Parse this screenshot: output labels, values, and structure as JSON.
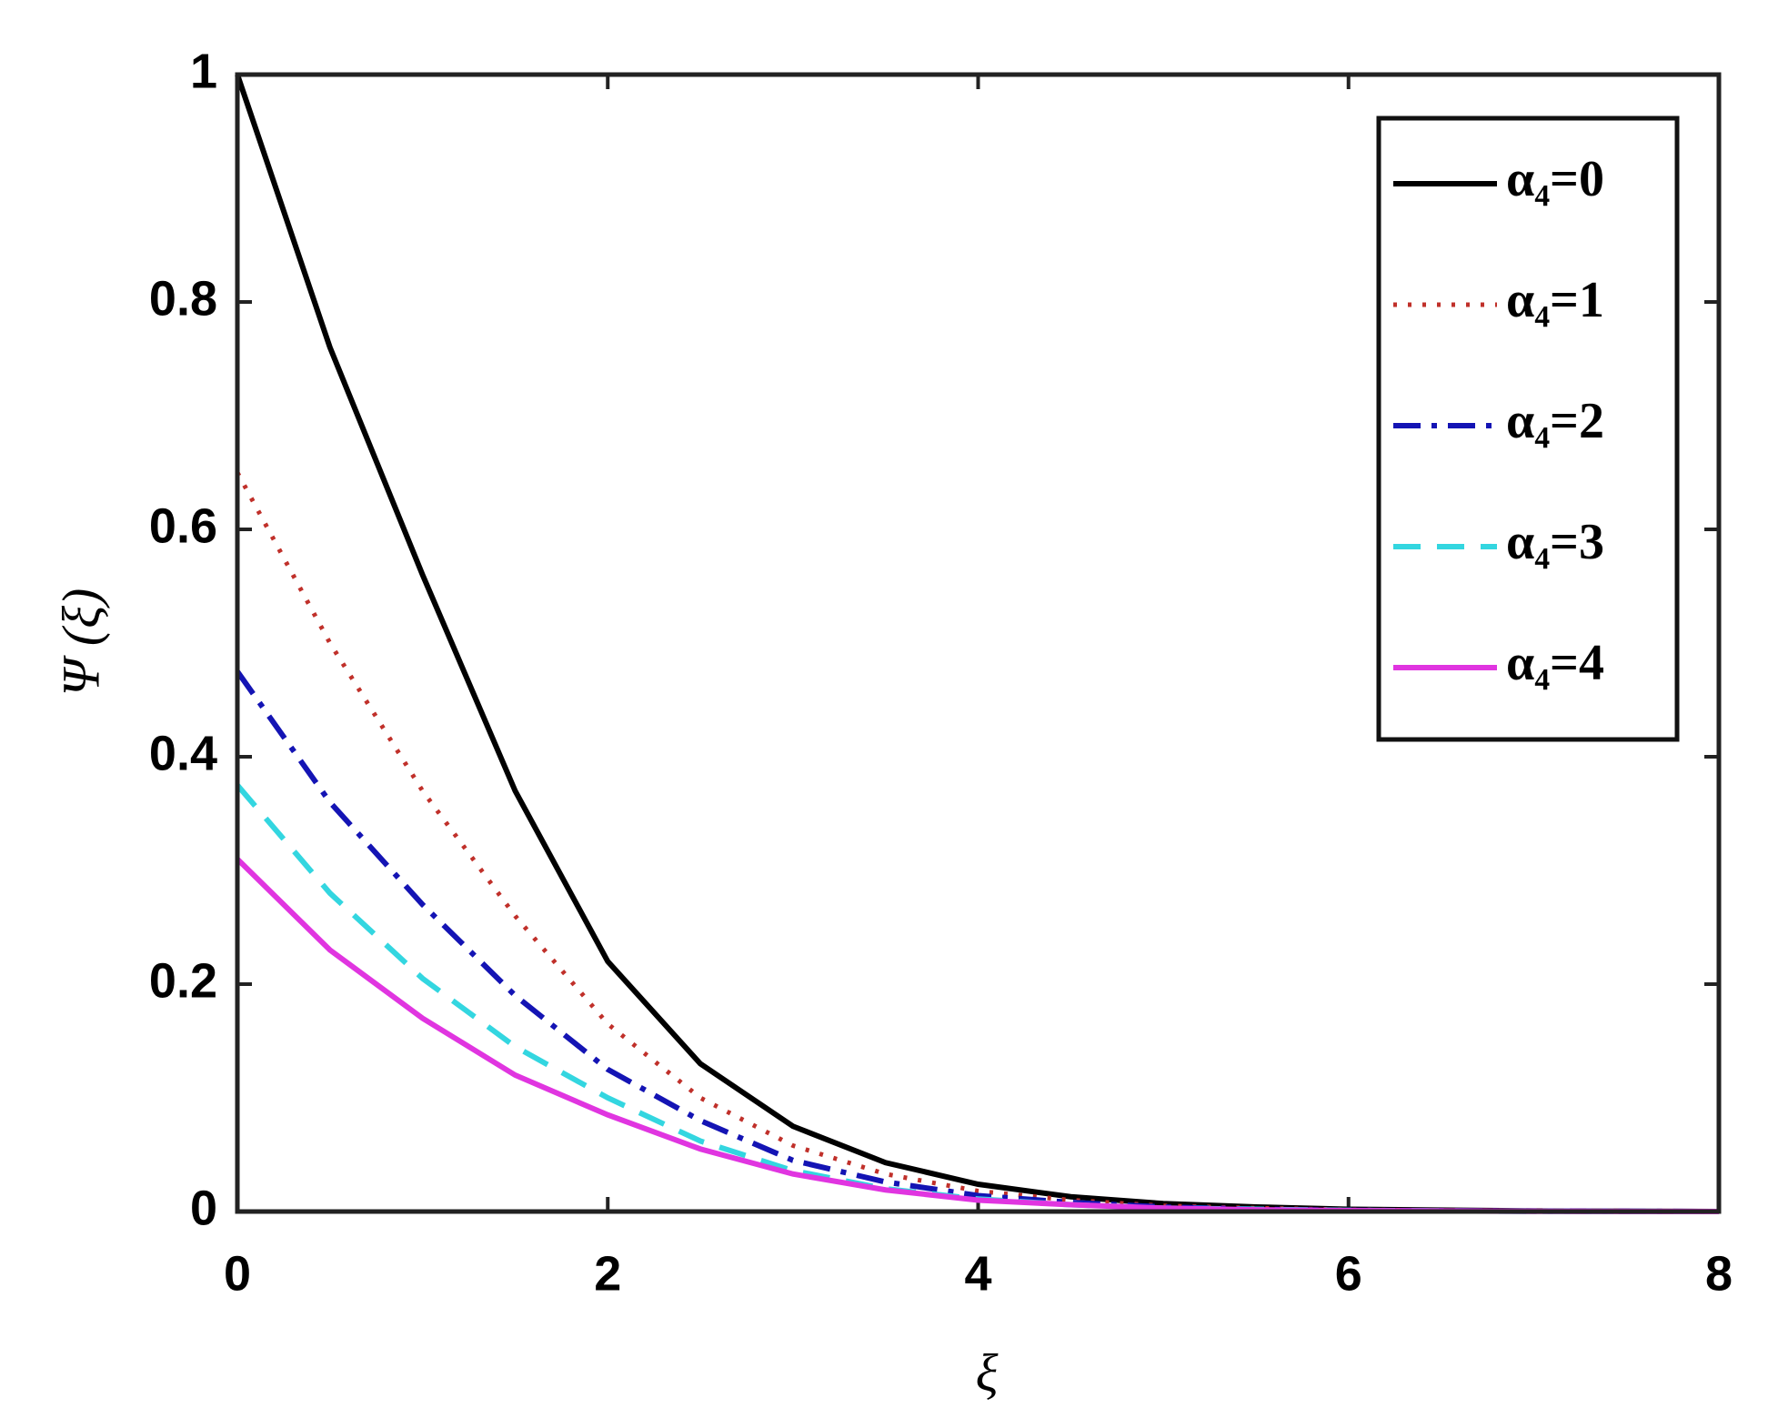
{
  "chart_data": {
    "type": "line",
    "xlabel": "ξ",
    "ylabel": "Ψ (ξ)",
    "x": [
      0,
      0.5,
      1,
      1.5,
      2,
      2.5,
      3,
      3.5,
      4,
      4.5,
      5,
      5.5,
      6,
      7,
      8
    ],
    "series": [
      {
        "name": "α₄=0",
        "color": "#000000",
        "dash": "solid",
        "values": [
          1,
          0.76,
          0.56,
          0.37,
          0.22,
          0.13,
          0.075,
          0.043,
          0.024,
          0.013,
          0.007,
          0.004,
          0.002,
          0.0005,
          0
        ]
      },
      {
        "name": "α₄=1",
        "color": "#c0302a",
        "dash": "dotted",
        "values": [
          0.65,
          0.5,
          0.37,
          0.26,
          0.165,
          0.1,
          0.058,
          0.033,
          0.018,
          0.01,
          0.005,
          0.003,
          0.0015,
          0.0004,
          0
        ]
      },
      {
        "name": "α₄=2",
        "color": "#1414b4",
        "dash": "dashdot",
        "values": [
          0.475,
          0.36,
          0.27,
          0.19,
          0.125,
          0.08,
          0.045,
          0.026,
          0.014,
          0.008,
          0.004,
          0.002,
          0.001,
          0.0003,
          0
        ]
      },
      {
        "name": "α₄=3",
        "color": "#33d6e0",
        "dash": "dashed",
        "values": [
          0.375,
          0.28,
          0.205,
          0.145,
          0.1,
          0.062,
          0.036,
          0.02,
          0.011,
          0.006,
          0.003,
          0.002,
          0.001,
          0.0002,
          0
        ]
      },
      {
        "name": "α₄=4",
        "color": "#e035e0",
        "dash": "solid",
        "values": [
          0.31,
          0.23,
          0.17,
          0.12,
          0.085,
          0.055,
          0.033,
          0.019,
          0.01,
          0.006,
          0.003,
          0.0015,
          0.0008,
          0.0002,
          0
        ]
      }
    ],
    "xlim": [
      0,
      8
    ],
    "ylim": [
      0,
      1
    ],
    "xticks": [
      0,
      2,
      4,
      6,
      8
    ],
    "yticks": [
      0,
      0.2,
      0.4,
      0.6,
      0.8,
      1
    ],
    "legend": "upper right",
    "grid": false
  }
}
